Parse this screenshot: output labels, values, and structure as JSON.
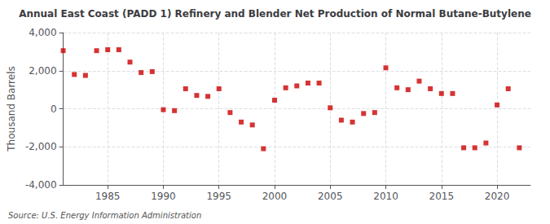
{
  "chart_data": {
    "type": "scatter",
    "title": "Annual East Coast (PADD 1) Refinery and Blender Net Production of Normal Butane-Butylene",
    "ylabel": "Thousand Barrels",
    "source": "Source: U.S. Energy Information Administration",
    "color": "#cc0000",
    "marker": "square",
    "grid": true,
    "xlim": [
      1981,
      2023
    ],
    "xticks": [
      1985,
      1990,
      1995,
      2000,
      2005,
      2010,
      2015,
      2020
    ],
    "ylim": [
      -4000,
      4000
    ],
    "yticks": [
      {
        "value": -4000,
        "label": "-4,000"
      },
      {
        "value": -2000,
        "label": "-2,000"
      },
      0,
      {
        "value": 2000,
        "label": "2,000"
      },
      {
        "value": 4000,
        "label": "4,000"
      }
    ],
    "x": [
      1981,
      1982,
      1983,
      1984,
      1985,
      1986,
      1987,
      1988,
      1989,
      1990,
      1991,
      1992,
      1993,
      1994,
      1995,
      1996,
      1997,
      1998,
      1999,
      2000,
      2001,
      2002,
      2003,
      2004,
      2005,
      2006,
      2007,
      2008,
      2009,
      2010,
      2011,
      2012,
      2013,
      2014,
      2015,
      2016,
      2017,
      2018,
      2019,
      2020,
      2021,
      2022
    ],
    "values": [
      3050,
      1800,
      1750,
      3050,
      3100,
      3100,
      2450,
      1900,
      1950,
      -50,
      -100,
      1050,
      700,
      650,
      1050,
      -200,
      -700,
      -850,
      -2100,
      450,
      1100,
      1200,
      1350,
      1350,
      50,
      -600,
      -700,
      -250,
      -200,
      2150,
      1100,
      1000,
      1450,
      1050,
      800,
      800,
      -2050,
      -2050,
      -1800,
      200,
      1050,
      -2050
    ]
  }
}
